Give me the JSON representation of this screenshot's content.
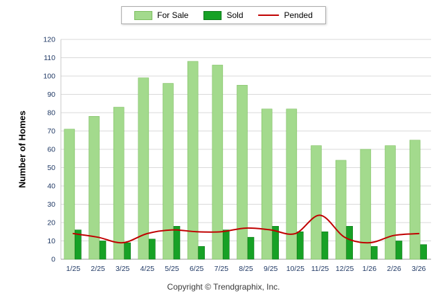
{
  "chart_data": {
    "type": "bar",
    "categories": [
      "1/25",
      "2/25",
      "3/25",
      "4/25",
      "5/25",
      "6/25",
      "7/25",
      "8/25",
      "9/25",
      "10/25",
      "11/25",
      "12/25",
      "1/26",
      "2/26",
      "3/26"
    ],
    "series": [
      {
        "name": "For Sale",
        "type": "bar",
        "color": "#A3DA8D",
        "border": "#7CBE5F",
        "values": [
          71,
          78,
          83,
          99,
          96,
          108,
          106,
          95,
          82,
          82,
          62,
          54,
          60,
          62,
          65
        ]
      },
      {
        "name": "Sold",
        "type": "bar",
        "color": "#17A126",
        "border": "#0C7A18",
        "values": [
          16,
          10,
          9,
          11,
          18,
          7,
          16,
          12,
          18,
          15,
          15,
          18,
          7,
          10,
          8
        ]
      },
      {
        "name": "Pended",
        "type": "line",
        "color": "#C00000",
        "values": [
          14,
          12,
          9,
          14,
          16,
          15,
          15,
          17,
          16,
          14,
          24,
          12,
          9,
          13,
          14
        ]
      }
    ],
    "title": "",
    "xlabel": "",
    "ylabel": "Number of Homes",
    "ylim": [
      0,
      120
    ],
    "ytick_step": 10,
    "grid": true,
    "legend_position": "top-center",
    "axis_text_color": "#1F3864",
    "grid_color": "#d9d9d9"
  },
  "footer": {
    "copyright": "Copyright © Trendgraphix, Inc."
  }
}
